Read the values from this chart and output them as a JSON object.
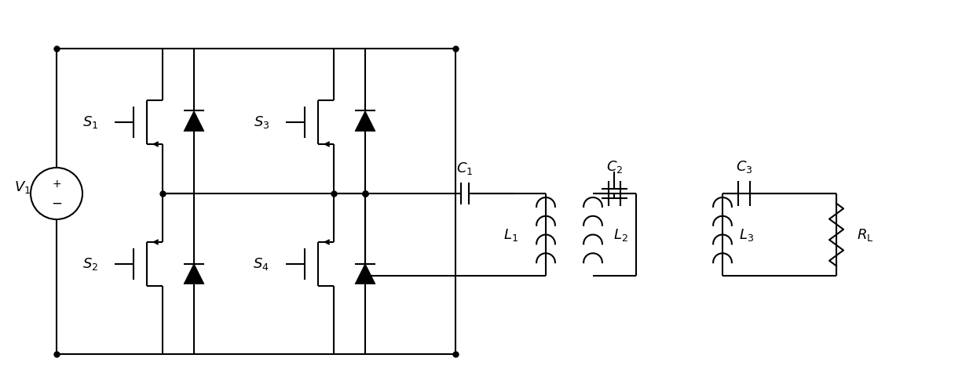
{
  "fig_width": 12.39,
  "fig_height": 4.94,
  "dpi": 100,
  "lw": 1.5,
  "lc": "black",
  "fs": 13,
  "dot_size": 5
}
